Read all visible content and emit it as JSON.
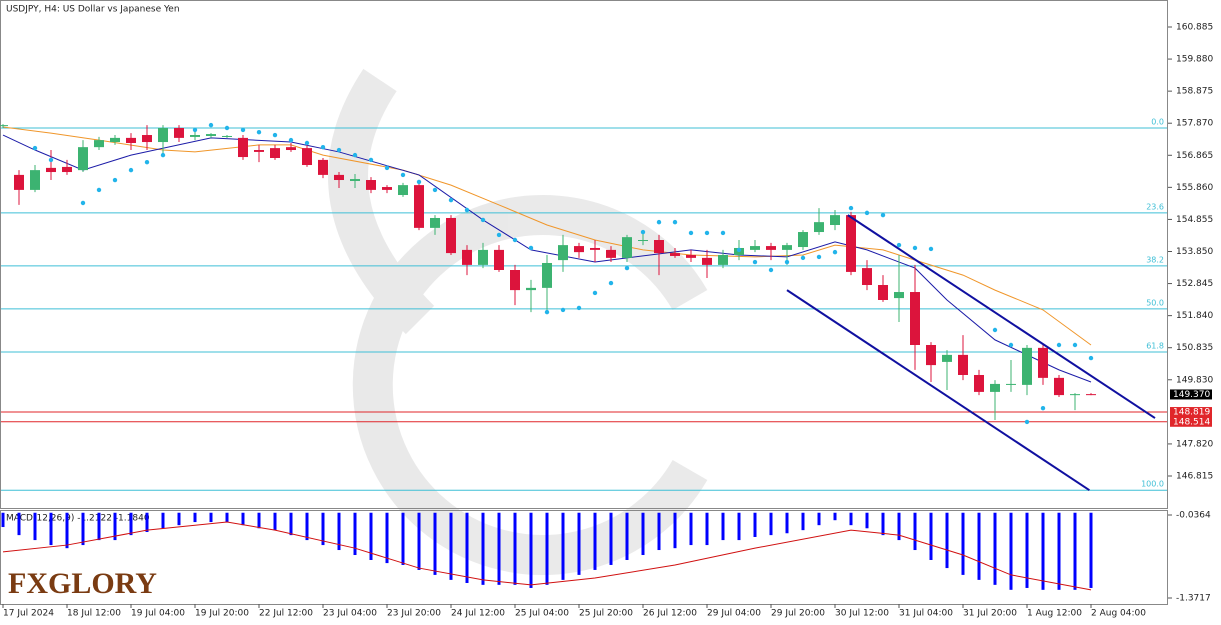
{
  "chart_data": {
    "type": "candlestick",
    "title": "USDJPY, H4:  US Dollar vs Japanese Yen",
    "logo": "FXGLORY",
    "ylim": [
      145.812,
      161.731
    ],
    "yticks": [
      160.885,
      {
        "value": 159.88,
        "label": "159.880"
      },
      158.875,
      {
        "value": 157.87,
        "label": "157.870"
      },
      156.865,
      {
        "value": 155.86,
        "label": "155.860"
      },
      154.855,
      {
        "value": 153.85,
        "label": "153.850"
      },
      152.845,
      {
        "value": 151.84,
        "label": "151.840"
      },
      150.835,
      {
        "value": 149.83,
        "label": "149.830"
      },
      {
        "value": 147.82,
        "label": "147.820"
      },
      146.815
    ],
    "xlabels": [
      "17 Jul 2024",
      "18 Jul 12:00",
      "19 Jul 04:00",
      "19 Jul 20:00",
      "22 Jul 12:00",
      "23 Jul 04:00",
      "23 Jul 20:00",
      "24 Jul 12:00",
      "25 Jul 04:00",
      "25 Jul 20:00",
      "26 Jul 12:00",
      "29 Jul 04:00",
      "29 Jul 20:00",
      "30 Jul 12:00",
      "31 Jul 04:00",
      "31 Jul 20:00",
      "1 Aug 12:00",
      "2 Aug 04:00"
    ],
    "up_color": "#3cb371",
    "down_color": "#dc143c",
    "candles": [
      [
        157.78,
        157.84,
        157.72,
        157.81
      ],
      [
        156.25,
        156.4,
        155.31,
        155.78
      ],
      [
        155.78,
        156.56,
        155.71,
        156.4
      ],
      [
        156.47,
        157.03,
        156.09,
        156.34
      ],
      [
        156.5,
        156.72,
        156.25,
        156.34
      ],
      [
        156.4,
        157.34,
        156.34,
        157.12
      ],
      [
        157.12,
        157.44,
        157.03,
        157.34
      ],
      [
        157.28,
        157.5,
        157.19,
        157.41
      ],
      [
        157.41,
        157.56,
        157.03,
        157.25
      ],
      [
        157.5,
        157.81,
        157.03,
        157.28
      ],
      [
        157.28,
        157.81,
        156.87,
        157.72
      ],
      [
        157.72,
        157.81,
        157.28,
        157.41
      ],
      [
        157.44,
        157.66,
        157.34,
        157.5
      ],
      [
        157.47,
        157.56,
        157.41,
        157.53
      ],
      [
        157.44,
        157.5,
        157.41,
        157.47
      ],
      [
        157.41,
        157.5,
        156.72,
        156.81
      ],
      [
        157.03,
        157.19,
        156.65,
        156.97
      ],
      [
        157.09,
        157.19,
        156.72,
        156.78
      ],
      [
        157.12,
        157.25,
        156.97,
        157.03
      ],
      [
        157.09,
        157.19,
        156.5,
        156.56
      ],
      [
        156.72,
        156.78,
        156.15,
        156.25
      ],
      [
        156.25,
        156.34,
        155.84,
        156.09
      ],
      [
        156.06,
        156.28,
        155.84,
        156.12
      ],
      [
        156.09,
        156.18,
        155.68,
        155.78
      ],
      [
        155.87,
        155.93,
        155.68,
        155.78
      ],
      [
        155.62,
        156.0,
        155.56,
        155.93
      ],
      [
        155.93,
        156.0,
        154.52,
        154.59
      ],
      [
        154.59,
        154.99,
        154.37,
        154.9
      ],
      [
        154.9,
        154.99,
        153.74,
        153.8
      ],
      [
        153.9,
        154.05,
        153.11,
        153.43
      ],
      [
        153.43,
        154.12,
        153.33,
        153.9
      ],
      [
        153.9,
        154.05,
        153.21,
        153.27
      ],
      [
        153.27,
        153.43,
        152.17,
        152.64
      ],
      [
        152.64,
        152.96,
        151.95,
        152.71
      ],
      [
        152.71,
        153.74,
        152.02,
        153.49
      ],
      [
        153.58,
        154.37,
        153.21,
        154.05
      ],
      [
        154.02,
        154.12,
        153.65,
        153.83
      ],
      [
        153.96,
        154.21,
        153.52,
        153.9
      ],
      [
        153.9,
        154.02,
        153.52,
        153.65
      ],
      [
        153.65,
        154.37,
        153.52,
        154.3
      ],
      [
        154.2,
        154.46,
        154.05,
        154.21
      ],
      [
        154.21,
        154.37,
        153.11,
        153.8
      ],
      [
        153.8,
        153.96,
        153.65,
        153.71
      ],
      [
        153.74,
        153.9,
        153.52,
        153.65
      ],
      [
        153.65,
        153.9,
        153.02,
        153.43
      ],
      [
        153.43,
        153.9,
        153.33,
        153.74
      ],
      [
        153.74,
        154.21,
        153.58,
        153.96
      ],
      [
        153.9,
        154.21,
        153.83,
        154.02
      ],
      [
        154.02,
        154.12,
        153.58,
        153.9
      ],
      [
        153.9,
        154.12,
        153.43,
        154.05
      ],
      [
        153.99,
        154.52,
        153.9,
        154.46
      ],
      [
        154.46,
        155.21,
        154.37,
        154.77
      ],
      [
        154.68,
        155.15,
        154.52,
        154.99
      ],
      [
        154.99,
        155.09,
        153.11,
        153.21
      ],
      [
        153.33,
        153.58,
        152.64,
        152.8
      ],
      [
        152.8,
        153.11,
        152.27,
        152.33
      ],
      [
        152.39,
        153.74,
        151.64,
        152.58
      ],
      [
        152.58,
        153.43,
        150.14,
        150.92
      ],
      [
        150.92,
        151.01,
        149.76,
        150.29
      ],
      [
        150.39,
        150.76,
        149.51,
        150.61
      ],
      [
        150.61,
        151.23,
        149.82,
        149.98
      ],
      [
        149.98,
        150.14,
        149.35,
        149.45
      ],
      [
        149.45,
        149.82,
        148.57,
        149.7
      ],
      [
        149.67,
        150.45,
        149.45,
        149.7
      ],
      [
        149.67,
        150.92,
        149.35,
        150.83
      ],
      [
        150.83,
        150.92,
        149.67,
        149.89
      ],
      [
        149.89,
        149.98,
        149.29,
        149.35
      ],
      [
        149.35,
        149.41,
        148.88,
        149.38
      ],
      [
        149.38,
        149.41,
        149.35,
        149.37
      ]
    ],
    "ma_fast": {
      "color": "#1c1ca8",
      "x": [
        0,
        2,
        5,
        8,
        13,
        18,
        21,
        26,
        30,
        33,
        37,
        39,
        43,
        46,
        49,
        52,
        54,
        57,
        59,
        62,
        64,
        66,
        68
      ],
      "values": [
        157.5,
        157.03,
        156.4,
        156.87,
        157.41,
        157.28,
        156.97,
        156.25,
        154.84,
        153.9,
        153.52,
        153.65,
        153.9,
        153.74,
        153.68,
        154.15,
        153.9,
        153.33,
        152.33,
        151.08,
        150.61,
        150.14,
        149.76
      ]
    },
    "ma_slow": {
      "color": "#f0962a",
      "x": [
        0,
        3,
        6,
        10,
        12,
        16,
        18,
        20,
        25,
        28,
        31,
        34,
        37,
        40,
        43,
        47,
        50,
        52,
        55,
        57,
        60,
        62,
        65,
        68
      ],
      "values": [
        157.75,
        157.56,
        157.34,
        157.03,
        156.97,
        157.19,
        157.19,
        156.87,
        156.4,
        155.93,
        155.31,
        154.68,
        154.21,
        153.9,
        153.74,
        153.68,
        153.74,
        154.05,
        153.9,
        153.58,
        153.11,
        152.64,
        152.02,
        150.92
      ]
    },
    "sar": {
      "color": "#22b4ea",
      "x": [
        2,
        3,
        5,
        6,
        7,
        8,
        9,
        10,
        12,
        13,
        14,
        15,
        16,
        17,
        18,
        19,
        20,
        21,
        22,
        23,
        24,
        25,
        26,
        27,
        28,
        29,
        30,
        31,
        32,
        33,
        34,
        35,
        36,
        37,
        38,
        39,
        40,
        41,
        42,
        43,
        44,
        45,
        46,
        47,
        48,
        49,
        50,
        51,
        52,
        53,
        54,
        55,
        56,
        57,
        58,
        62,
        63,
        64,
        65,
        66,
        67,
        68
      ],
      "values": [
        157.09,
        156.72,
        155.37,
        155.78,
        156.09,
        156.4,
        156.65,
        156.87,
        157.66,
        157.81,
        157.72,
        157.66,
        157.59,
        157.5,
        157.34,
        157.25,
        157.12,
        157.03,
        156.87,
        156.72,
        156.47,
        156.25,
        156.03,
        155.78,
        155.46,
        155.15,
        154.84,
        154.37,
        154.21,
        153.96,
        151.95,
        152.02,
        152.08,
        152.55,
        152.86,
        153.33,
        154.46,
        154.77,
        154.77,
        154.43,
        154.43,
        154.43,
        153.9,
        153.52,
        153.27,
        153.52,
        153.65,
        153.68,
        153.83,
        155.21,
        155.06,
        154.99,
        154.05,
        153.96,
        153.93,
        151.39,
        150.92,
        148.51,
        148.94,
        150.92,
        150.92,
        150.51
      ]
    },
    "channel": {
      "color": "#1010a0",
      "lines": [
        {
          "x": [
            52.8,
            72
          ],
          "values": [
            154.99,
            148.63
          ]
        },
        {
          "x": [
            49,
            67.9
          ],
          "values": [
            152.64,
            146.37
          ]
        }
      ]
    },
    "fib": {
      "color": "#3fbfd6",
      "prices": [
        157.72,
        155.06,
        153.4,
        152.05,
        150.7,
        146.37
      ],
      "labels": [
        {
          "value": 0,
          "label": "0.0"
        },
        23.6,
        38.2,
        {
          "value": 50,
          "label": "50.0"
        },
        61.8,
        {
          "value": 100,
          "label": "100.0"
        }
      ]
    },
    "levels": {
      "color": "#e0262a",
      "values": [
        148.819,
        148.514
      ]
    },
    "current_price": {
      "value": 149.37,
      "label": "149.370"
    },
    "macd": {
      "title": "MACD(12,26,9) -1.2122 -1.1840",
      "ylim": [
        -1.468,
        0.044
      ],
      "yticks": [
        -0.0364,
        -1.3717
      ],
      "hist_color": "#0000ff",
      "signal_color": "#d01010",
      "histogram": [
        -0.23,
        -0.36,
        -0.44,
        -0.52,
        -0.57,
        -0.52,
        -0.44,
        -0.44,
        -0.36,
        -0.31,
        -0.25,
        -0.2,
        -0.15,
        -0.15,
        -0.15,
        -0.2,
        -0.25,
        -0.28,
        -0.36,
        -0.44,
        -0.52,
        -0.6,
        -0.68,
        -0.76,
        -0.81,
        -0.84,
        -0.92,
        -1.0,
        -1.08,
        -1.13,
        -1.16,
        -1.16,
        -1.16,
        -1.21,
        -1.16,
        -1.08,
        -1.0,
        -0.92,
        -0.84,
        -0.76,
        -0.68,
        -0.6,
        -0.57,
        -0.52,
        -0.52,
        -0.44,
        -0.44,
        -0.39,
        -0.36,
        -0.33,
        -0.28,
        -0.2,
        -0.12,
        -0.2,
        -0.25,
        -0.36,
        -0.44,
        -0.6,
        -0.76,
        -0.89,
        -1.0,
        -1.08,
        -1.16,
        -1.24,
        -1.21,
        -1.24,
        -1.24,
        -1.24,
        -1.21
      ],
      "signal": {
        "x": [
          0,
          4,
          9,
          14,
          17,
          22,
          26,
          30,
          33,
          37,
          42,
          47,
          53,
          56,
          60,
          63,
          68
        ],
        "values": [
          -0.63,
          -0.52,
          -0.28,
          -0.15,
          -0.28,
          -0.57,
          -0.89,
          -1.08,
          -1.16,
          -1.05,
          -0.84,
          -0.57,
          -0.28,
          -0.36,
          -0.68,
          -1.0,
          -1.24
        ]
      }
    }
  }
}
